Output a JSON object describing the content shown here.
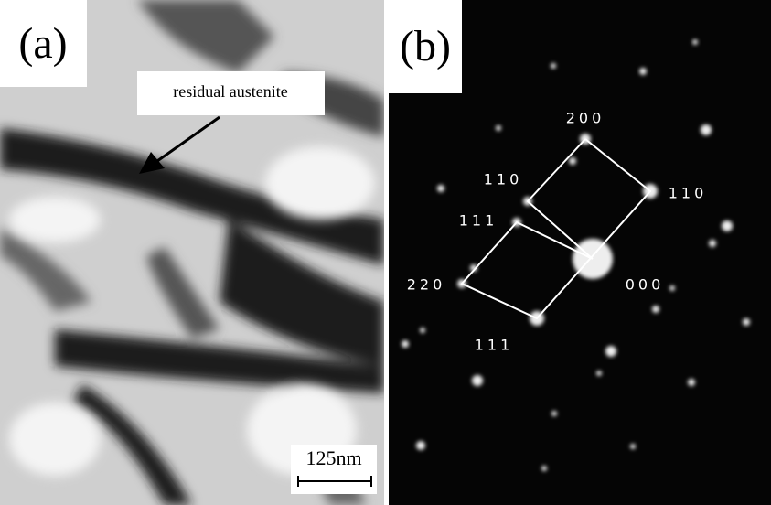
{
  "panel_a": {
    "label": "(a)",
    "annotation": "residual austenite",
    "scale_bar": "125nm"
  },
  "panel_b": {
    "label": "(b)",
    "indices": [
      "200",
      "110",
      "110",
      "111",
      "220",
      "000",
      "111"
    ]
  }
}
